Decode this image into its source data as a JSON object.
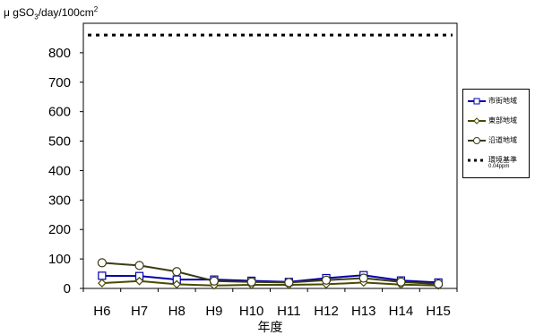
{
  "chart_data": {
    "type": "line",
    "ylabel_main": "μ gSO",
    "ylabel_sub": "3",
    "ylabel_mid": "/day/100cm",
    "ylabel_sup": "2",
    "xlabel": "年度",
    "categories": [
      "H6",
      "H7",
      "H8",
      "H9",
      "H10",
      "H11",
      "H12",
      "H13",
      "H14",
      "H15"
    ],
    "ylim": [
      0,
      900
    ],
    "yticks": [
      0,
      100,
      200,
      300,
      400,
      500,
      600,
      700,
      800
    ],
    "grid": false,
    "legend_position": "right",
    "series": [
      {
        "name": "市街地域",
        "color": "#0000aa",
        "marker": "square",
        "values": [
          43,
          42,
          30,
          30,
          26,
          22,
          35,
          45,
          27,
          20
        ]
      },
      {
        "name": "東部地域",
        "color": "#4a4a00",
        "marker": "diamond",
        "values": [
          18,
          25,
          14,
          10,
          12,
          12,
          14,
          20,
          13,
          10
        ]
      },
      {
        "name": "沿道地域",
        "color": "#3c3c14",
        "marker": "circle",
        "values": [
          87,
          78,
          57,
          25,
          22,
          20,
          28,
          35,
          22,
          15
        ]
      },
      {
        "name": "環境基準",
        "sublabel": "0.04ppm",
        "color": "#000000",
        "marker": "none",
        "dashed": true,
        "values": [
          860,
          860,
          860,
          860,
          860,
          860,
          860,
          860,
          860,
          860
        ]
      }
    ]
  }
}
